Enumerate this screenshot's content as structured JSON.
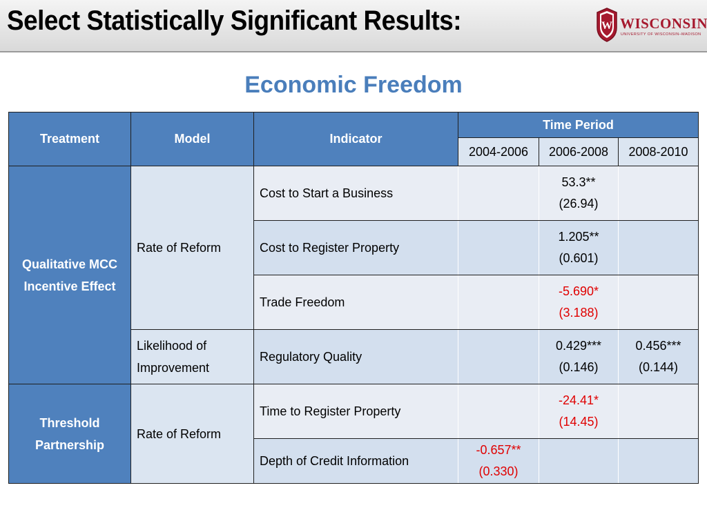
{
  "slide": {
    "title": "Select Statistically Significant Results:",
    "subtitle": "Economic Freedom",
    "logo": {
      "word": "WISCONSIN",
      "sub": "UNIVERSITY OF WISCONSIN–MADISON",
      "crest_letter": "W",
      "color": "#a6192e"
    }
  },
  "table": {
    "headers": {
      "treatment": "Treatment",
      "model": "Model",
      "indicator": "Indicator",
      "time_period": "Time Period"
    },
    "periods": [
      "2004-2006",
      "2006-2008",
      "2008-2010"
    ],
    "groups": [
      {
        "treatment": "Qualitative MCC Incentive Effect"
      },
      {
        "treatment": "Threshold Partnership"
      }
    ],
    "models": [
      "Rate of Reform",
      "Likelihood of Improvement",
      "Rate of Reform"
    ],
    "rows": [
      {
        "indicator": "Cost to Start a Business",
        "cells": [
          null,
          {
            "value": "53.3**",
            "se": "(26.94)",
            "sign": "pos"
          },
          null
        ]
      },
      {
        "indicator": "Cost to Register Property",
        "cells": [
          null,
          {
            "value": "1.205**",
            "se": "(0.601)",
            "sign": "pos"
          },
          null
        ]
      },
      {
        "indicator": "Trade Freedom",
        "cells": [
          null,
          {
            "value": "-5.690*",
            "se": "(3.188)",
            "sign": "neg"
          },
          null
        ]
      },
      {
        "indicator": "Regulatory Quality",
        "cells": [
          null,
          {
            "value": "0.429***",
            "se": "(0.146)",
            "sign": "pos"
          },
          {
            "value": "0.456***",
            "se": "(0.144)",
            "sign": "pos"
          }
        ]
      },
      {
        "indicator": "Time to Register Property",
        "cells": [
          null,
          {
            "value": "-24.41*",
            "se": "(14.45)",
            "sign": "neg"
          },
          null
        ]
      },
      {
        "indicator": "Depth of Credit Information",
        "cells": [
          {
            "value": "-0.657**",
            "se": "(0.330)",
            "sign": "neg"
          },
          null,
          null
        ]
      }
    ],
    "colors": {
      "header_blue": "#4f81bd",
      "light_row": "#e9edf4",
      "dark_row": "#d3dfee",
      "negative_red": "#e00000"
    }
  }
}
